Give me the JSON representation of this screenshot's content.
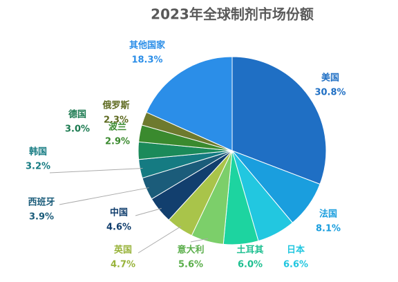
{
  "chart_data": {
    "type": "pie",
    "title": "2023年全球制剂市场份额",
    "categories": [
      "美国",
      "法国",
      "日本",
      "土耳其",
      "意大利",
      "英国",
      "中国",
      "西班牙",
      "韩国",
      "德国",
      "波兰",
      "俄罗斯",
      "其他国家"
    ],
    "values": [
      30.8,
      8.1,
      6.6,
      6.0,
      5.6,
      4.7,
      4.6,
      3.9,
      3.2,
      3.0,
      2.9,
      2.3,
      18.3
    ],
    "value_labels": [
      "30.8%",
      "8.1%",
      "6.6%",
      "6.0%",
      "5.6%",
      "4.7%",
      "4.6%",
      "3.9%",
      "3.2%",
      "3.0%",
      "2.9%",
      "2.3%",
      "18.3%"
    ],
    "colors": [
      "#1f6fc4",
      "#1a9ede",
      "#22c7e0",
      "#1dd4a0",
      "#7ccf6a",
      "#a9c44a",
      "#123f6e",
      "#1b5c7a",
      "#157b82",
      "#1b8a5a",
      "#3a8a2e",
      "#6e7a2e",
      "#2b8ee8"
    ]
  }
}
